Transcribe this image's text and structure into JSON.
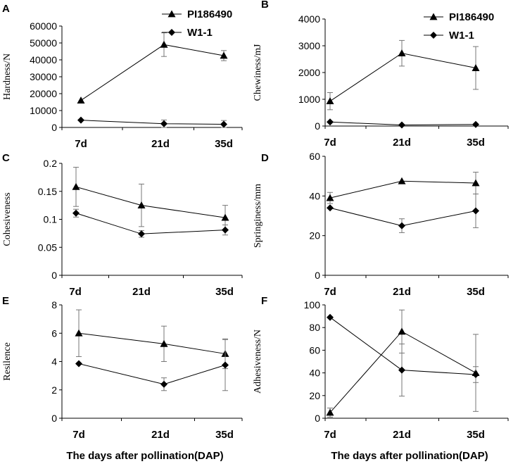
{
  "chart_data": [
    {
      "id": "A",
      "type": "line",
      "panel_label": "A",
      "ylabel": "Hardness/N",
      "xlabel": "",
      "categories": [
        "7d",
        "21d",
        "35d"
      ],
      "ylim": [
        0,
        60000
      ],
      "yticks": [
        "0",
        "10000",
        "20000",
        "30000",
        "40000",
        "50000",
        "60000"
      ],
      "series": [
        {
          "name": "PI186490",
          "marker": "triangle",
          "values": [
            16000,
            49000,
            42500
          ],
          "errors": [
            0,
            7000,
            3000
          ]
        },
        {
          "name": "W1-1",
          "marker": "diamond",
          "values": [
            4300,
            2200,
            1900
          ],
          "errors": [
            0,
            2200,
            2200
          ]
        }
      ],
      "legend": "top-right"
    },
    {
      "id": "B",
      "type": "line",
      "panel_label": "B",
      "ylabel": "Chewiness/mJ",
      "xlabel": "",
      "categories": [
        "7d",
        "21d",
        "35d"
      ],
      "ylim": [
        0,
        4000
      ],
      "yticks": [
        "0",
        "1000",
        "2000",
        "3000",
        "4000"
      ],
      "series": [
        {
          "name": "PI186490",
          "marker": "triangle",
          "values": [
            930,
            2720,
            2170
          ],
          "errors": [
            320,
            480,
            800
          ]
        },
        {
          "name": "W1-1",
          "marker": "diamond",
          "values": [
            150,
            40,
            60
          ],
          "errors": [
            0,
            0,
            0
          ]
        }
      ],
      "legend": "top-right"
    },
    {
      "id": "C",
      "type": "line",
      "panel_label": "C",
      "ylabel": "Cohesiveness",
      "xlabel": "",
      "categories": [
        "7d",
        "21d",
        "35d"
      ],
      "ylim": [
        0,
        0.2
      ],
      "yticks": [
        "0",
        "0.05",
        "0.1",
        "0.15",
        "0.2"
      ],
      "series": [
        {
          "name": "PI186490",
          "marker": "triangle",
          "values": [
            0.158,
            0.125,
            0.103
          ],
          "errors": [
            0.035,
            0.038,
            0.022
          ]
        },
        {
          "name": "W1-1",
          "marker": "diamond",
          "values": [
            0.111,
            0.074,
            0.081
          ],
          "errors": [
            0.007,
            0.006,
            0.009
          ]
        }
      ]
    },
    {
      "id": "D",
      "type": "line",
      "panel_label": "D",
      "ylabel": "Springiness/mm",
      "xlabel": "",
      "categories": [
        "7d",
        "21d",
        "35d"
      ],
      "ylim": [
        0,
        60
      ],
      "yticks": [
        "0",
        "20",
        "40",
        "60"
      ],
      "series": [
        {
          "name": "PI186490",
          "marker": "triangle",
          "values": [
            39,
            47.5,
            46.5
          ],
          "errors": [
            2.8,
            0,
            5.5
          ]
        },
        {
          "name": "W1-1",
          "marker": "diamond",
          "values": [
            34,
            25,
            32.5
          ],
          "errors": [
            0,
            3.5,
            8.5
          ]
        }
      ]
    },
    {
      "id": "E",
      "type": "line",
      "panel_label": "E",
      "ylabel": "Resilence",
      "xlabel": "The days after pollination(DAP)",
      "categories": [
        "7d",
        "21d",
        "35d"
      ],
      "ylim": [
        0,
        8
      ],
      "yticks": [
        "0",
        "2",
        "4",
        "6",
        "8"
      ],
      "series": [
        {
          "name": "PI186490",
          "marker": "triangle",
          "values": [
            6.0,
            5.25,
            4.55
          ],
          "errors": [
            1.65,
            1.25,
            1.05
          ]
        },
        {
          "name": "W1-1",
          "marker": "diamond",
          "values": [
            3.85,
            2.4,
            3.75
          ],
          "errors": [
            0,
            0.45,
            1.8
          ]
        }
      ]
    },
    {
      "id": "F",
      "type": "line",
      "panel_label": "F",
      "ylabel": "Adhesiveness/N",
      "xlabel": "The days after pollination(DAP)",
      "categories": [
        "7d",
        "21d",
        "35d"
      ],
      "ylim": [
        0,
        100
      ],
      "yticks": [
        "0",
        "20",
        "40",
        "60",
        "80",
        "100"
      ],
      "series": [
        {
          "name": "PI186490",
          "marker": "triangle",
          "values": [
            5,
            76.5,
            40
          ],
          "errors": [
            4,
            19,
            34
          ]
        },
        {
          "name": "W1-1",
          "marker": "diamond",
          "values": [
            89,
            42.5,
            38.5
          ],
          "errors": [
            0,
            23,
            7
          ]
        }
      ]
    }
  ]
}
